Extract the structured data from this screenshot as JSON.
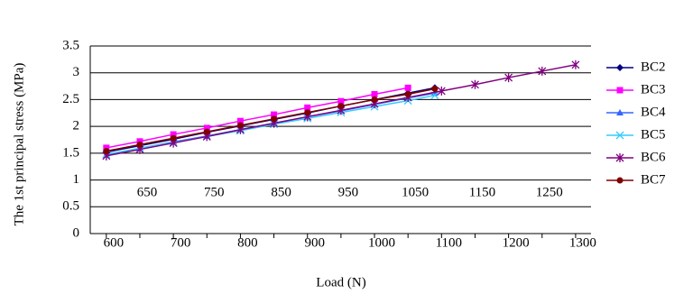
{
  "chart_data": {
    "type": "line",
    "xlabel": "Load (N)",
    "ylabel": "The 1st principal stress (MPa)",
    "xlim": [
      576,
      1323
    ],
    "xticks": [
      600,
      650,
      700,
      750,
      800,
      850,
      900,
      950,
      1000,
      1050,
      1100,
      1150,
      1200,
      1250,
      1300
    ],
    "ylim": [
      0,
      3.5
    ],
    "yticks": [
      0,
      0.5,
      1,
      1.5,
      2,
      2.5,
      3,
      3.5
    ],
    "grid": true,
    "legend": "right",
    "series": [
      {
        "name": "BC2",
        "color": "#000080",
        "marker": "diamond",
        "x": [
          600,
          650,
          700,
          750,
          800,
          850,
          900,
          950,
          1000,
          1050,
          1090
        ],
        "values": [
          1.52,
          1.64,
          1.76,
          1.89,
          2.01,
          2.13,
          2.25,
          2.38,
          2.5,
          2.62,
          2.72
        ]
      },
      {
        "name": "BC3",
        "color": "#ff00ff",
        "marker": "square",
        "x": [
          600,
          650,
          700,
          750,
          800,
          850,
          900,
          950,
          1000,
          1050
        ],
        "values": [
          1.6,
          1.72,
          1.85,
          1.97,
          2.1,
          2.22,
          2.35,
          2.47,
          2.6,
          2.72
        ]
      },
      {
        "name": "BC4",
        "color": "#3366ff",
        "marker": "triangle",
        "x": [
          600,
          650,
          700,
          750,
          800,
          850,
          900,
          950,
          1000,
          1050,
          1090
        ],
        "values": [
          1.47,
          1.59,
          1.71,
          1.82,
          1.94,
          2.06,
          2.18,
          2.29,
          2.41,
          2.53,
          2.62
        ]
      },
      {
        "name": "BC5",
        "color": "#33ccff",
        "marker": "x",
        "x": [
          600,
          650,
          700,
          750,
          800,
          850,
          900,
          950,
          1000,
          1050,
          1090
        ],
        "values": [
          1.48,
          1.59,
          1.7,
          1.81,
          1.92,
          2.04,
          2.15,
          2.26,
          2.37,
          2.48,
          2.58
        ]
      },
      {
        "name": "BC6",
        "color": "#800080",
        "marker": "star",
        "x": [
          600,
          650,
          700,
          750,
          800,
          850,
          900,
          950,
          1000,
          1050,
          1100,
          1150,
          1200,
          1250,
          1300
        ],
        "values": [
          1.45,
          1.57,
          1.69,
          1.81,
          1.94,
          2.06,
          2.18,
          2.3,
          2.42,
          2.54,
          2.66,
          2.78,
          2.91,
          3.03,
          3.15
        ]
      },
      {
        "name": "BC7",
        "color": "#800000",
        "marker": "circle",
        "x": [
          600,
          650,
          700,
          750,
          800,
          850,
          900,
          950,
          1000,
          1050,
          1090
        ],
        "values": [
          1.54,
          1.66,
          1.78,
          1.9,
          2.02,
          2.14,
          2.26,
          2.38,
          2.5,
          2.6,
          2.7
        ]
      }
    ]
  }
}
